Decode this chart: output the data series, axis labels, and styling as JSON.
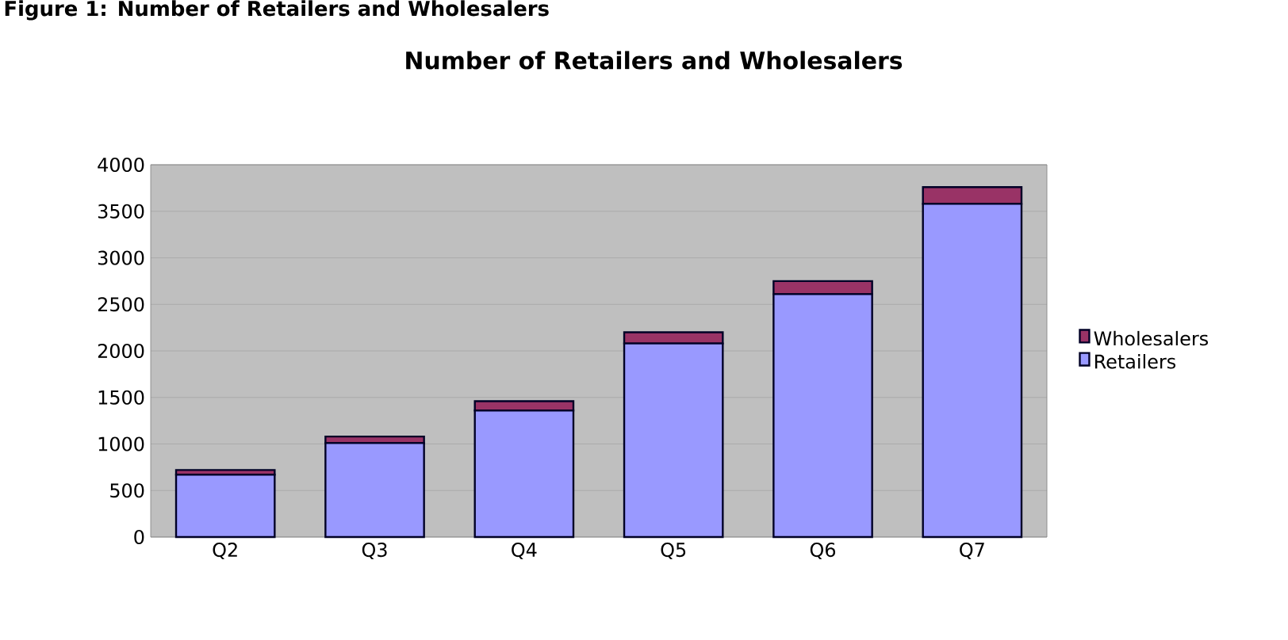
{
  "chart_data": {
    "type": "bar",
    "title": "Number of Retailers and Wholesalers",
    "annotations": [
      "Figure 1: Number of Retailers and Wholesalers"
    ],
    "categories": [
      "Q2",
      "Q3",
      "Q4",
      "Q5",
      "Q6",
      "Q7"
    ],
    "stacked": true,
    "series": [
      {
        "name": "Retailers",
        "color": "#9999ff",
        "values": [
          670,
          1010,
          1360,
          2080,
          2610,
          3580
        ]
      },
      {
        "name": "Wholesalers",
        "color": "#993366",
        "values": [
          50,
          70,
          100,
          120,
          140,
          180
        ]
      }
    ],
    "ylim": [
      0,
      4000
    ],
    "yticks": [
      0,
      500,
      1000,
      1500,
      2000,
      2500,
      3000,
      3500,
      4000
    ],
    "grid": "y",
    "legend": "right"
  }
}
